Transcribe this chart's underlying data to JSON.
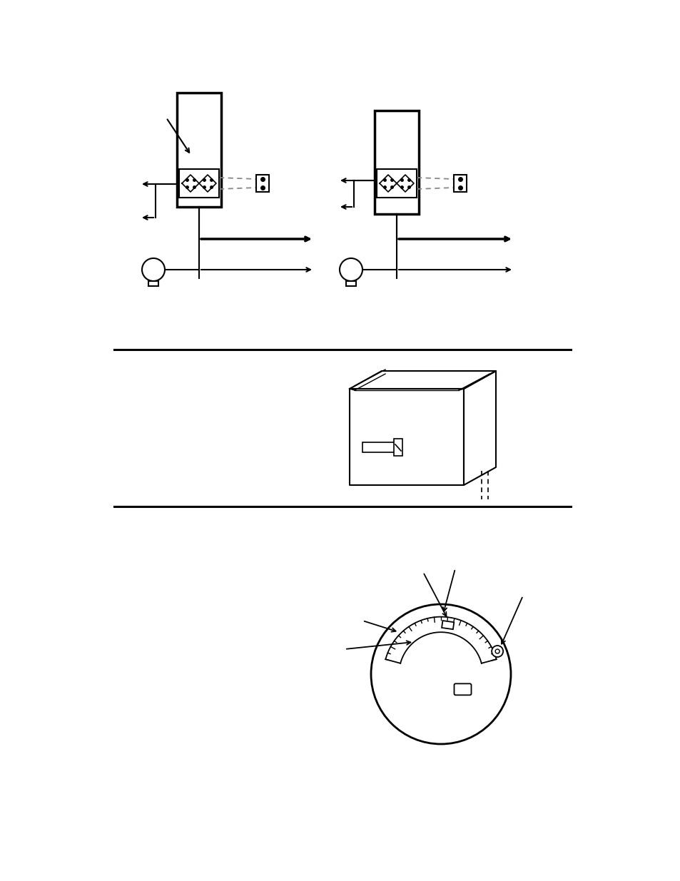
{
  "bg_color": "#ffffff",
  "line_color": "#000000",
  "dashed_color": "#888888",
  "fig_width": 9.54,
  "fig_height": 12.35
}
